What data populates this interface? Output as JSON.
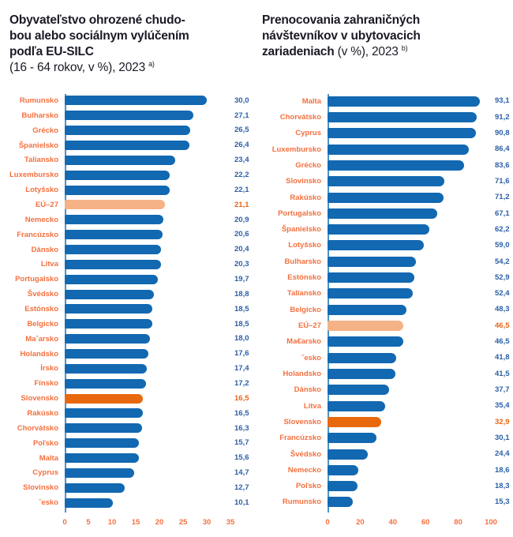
{
  "colors": {
    "bar_blue": "#1268b1",
    "bar_sk_orange": "#e8690d",
    "bar_eu_light_orange": "#f5b286",
    "value_text_blue": "#2b5fa6",
    "value_text_highlight": "#e9651a",
    "country_label_orange": "#f4703f",
    "axis_line_blue": "#4d92c8",
    "title_dark": "#1a1926"
  },
  "chart_data": [
    {
      "type": "bar",
      "orientation": "horizontal",
      "title_lines": [
        {
          "b": "Obyvateľstvo ohrozené chudo-"
        },
        {
          "b": "bou alebo sociálnym vylúčením"
        },
        {
          "b": "podľa EU-SILC"
        },
        {
          "n": "(16 - 64 rokov, v %), 2023 ",
          "sup": "a)"
        }
      ],
      "xlim": [
        0,
        35
      ],
      "xticks": [
        0,
        5,
        10,
        15,
        20,
        25,
        30,
        35
      ],
      "grid": false,
      "legend": false,
      "categories": [
        "Rumunsko",
        "Bulharsko",
        "Grécko",
        "Španielsko",
        "Taliansko",
        "Luxembursko",
        "Lotyšsko",
        "EÚ–27",
        "Nemecko",
        "Francúzsko",
        "Dánsko",
        "Litva",
        "Portugalsko",
        "Švédsko",
        "Estónsko",
        "Belgicko",
        "Maˇarsko",
        "Holandsko",
        "Írsko",
        "Fínsko",
        "Slovensko",
        "Rakúsko",
        "Chorvátsko",
        "Poľsko",
        "Malta",
        "Cyprus",
        "Slovinsko",
        "ˇesko"
      ],
      "values": [
        30.0,
        27.1,
        26.5,
        26.4,
        23.4,
        22.2,
        22.1,
        21.1,
        20.9,
        20.6,
        20.4,
        20.3,
        19.7,
        18.8,
        18.5,
        18.5,
        18.0,
        17.6,
        17.4,
        17.2,
        16.5,
        16.5,
        16.3,
        15.7,
        15.6,
        14.7,
        12.7,
        10.1
      ],
      "value_labels": [
        "30,0",
        "27,1",
        "26,5",
        "26,4",
        "23,4",
        "22,2",
        "22,1",
        "21,1",
        "20,9",
        "20,6",
        "20,4",
        "20,3",
        "19,7",
        "18,8",
        "18,5",
        "18,5",
        "18,0",
        "17,6",
        "17,4",
        "17,2",
        "16,5",
        "16,5",
        "16,3",
        "15,7",
        "15,6",
        "14,7",
        "12,7",
        "10,1"
      ],
      "bar_kinds": [
        "default",
        "default",
        "default",
        "default",
        "default",
        "default",
        "default",
        "eu",
        "default",
        "default",
        "default",
        "default",
        "default",
        "default",
        "default",
        "default",
        "default",
        "default",
        "default",
        "default",
        "sk",
        "default",
        "default",
        "default",
        "default",
        "default",
        "default",
        "default"
      ]
    },
    {
      "type": "bar",
      "orientation": "horizontal",
      "title_lines": [
        {
          "b": "Prenocovania zahraničných"
        },
        {
          "b": "návštevníkov v ubytovacich"
        },
        {
          "b": "zariadeniach",
          "n": " (v %), 2023 ",
          "sup": "b)"
        }
      ],
      "xlim": [
        0,
        100
      ],
      "xticks": [
        0,
        20,
        40,
        60,
        80,
        100
      ],
      "grid": false,
      "legend": false,
      "categories": [
        "Malta",
        "Chorvátsko",
        "Cyprus",
        "Luxembursko",
        "Grécko",
        "Slovinsko",
        "Rakúsko",
        "Portugalsko",
        "Španielsko",
        "Lotyšsko",
        "Bulharsko",
        "Estónsko",
        "Taliansko",
        "Belgicko",
        "EÚ–27",
        "Ma€arsko",
        "ˇesko",
        "Holandsko",
        "Dánsko",
        "Litva",
        "Slovensko",
        "Francúzsko",
        "Švédsko",
        "Nemecko",
        "Poľsko",
        "Rumunsko"
      ],
      "values": [
        93.1,
        91.2,
        90.8,
        86.4,
        83.6,
        71.6,
        71.2,
        67.1,
        62.2,
        59.0,
        54.2,
        52.9,
        52.4,
        48.3,
        46.5,
        46.5,
        41.8,
        41.5,
        37.7,
        35.4,
        32.9,
        30.1,
        24.4,
        18.6,
        18.3,
        15.3
      ],
      "value_labels": [
        "93,1",
        "91,2",
        "90,8",
        "86,4",
        "83,6",
        "71,6",
        "71,2",
        "67,1",
        "62,2",
        "59,0",
        "54,2",
        "52,9",
        "52,4",
        "48,3",
        "46,5",
        "46,5",
        "41,8",
        "41,5",
        "37,7",
        "35,4",
        "32,9",
        "30,1",
        "24,4",
        "18,6",
        "18,3",
        "15,3"
      ],
      "bar_kinds": [
        "default",
        "default",
        "default",
        "default",
        "default",
        "default",
        "default",
        "default",
        "default",
        "default",
        "default",
        "default",
        "default",
        "default",
        "eu",
        "default",
        "default",
        "default",
        "default",
        "default",
        "sk",
        "default",
        "default",
        "default",
        "default",
        "default"
      ]
    }
  ]
}
